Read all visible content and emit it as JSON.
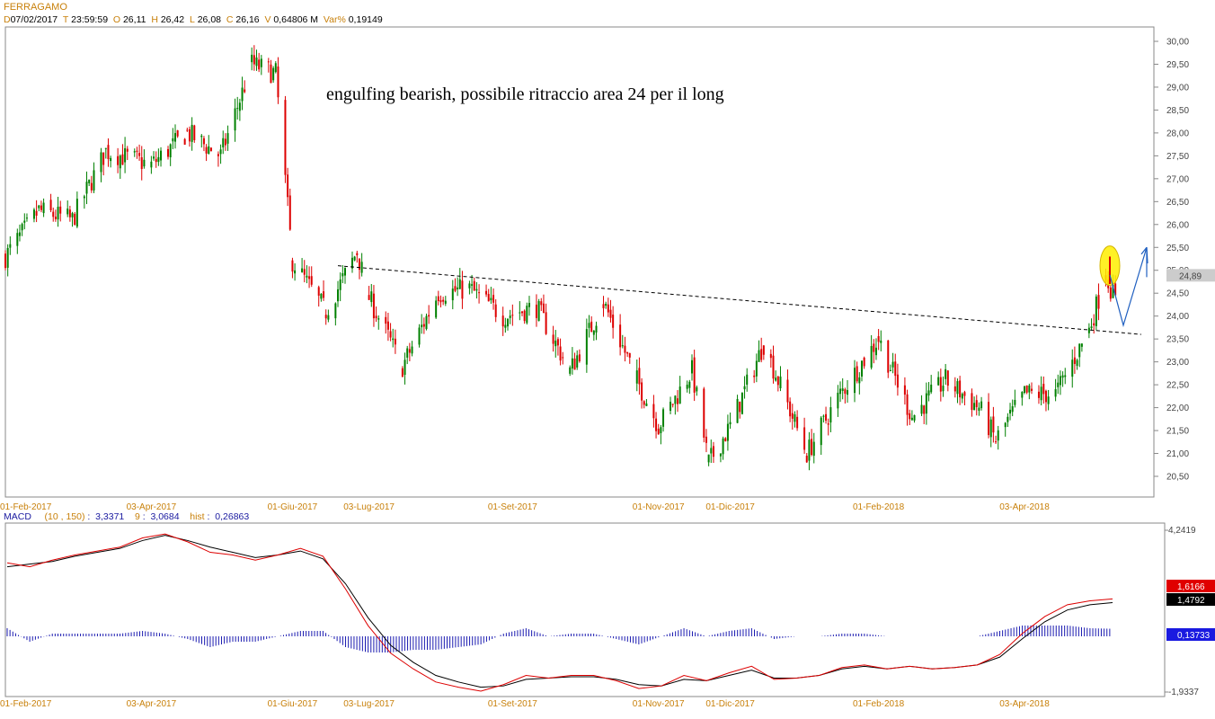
{
  "header": {
    "symbol": "FERRAGAMO",
    "date_key": "D",
    "date": "07/02/2017",
    "time_key": "T",
    "time": "23:59:59",
    "open_key": "O",
    "open": "26,11",
    "high_key": "H",
    "high": "26,42",
    "low_key": "L",
    "low": "26,08",
    "close_key": "C",
    "close": "26,16",
    "volume_key": "V",
    "volume": "0,64806 M",
    "varpct_key": "Var%",
    "varpct": "0,19149"
  },
  "macd_header": {
    "name": "MACD",
    "params": "(10 , 150)",
    "macd_value": "3,3371",
    "signal_period": "9",
    "signal_value": "3,0684",
    "hist_key": "hist",
    "hist_value": "0,26863"
  },
  "annotation": "engulfing bearish, possibile ritraccio area 24 per il long",
  "colors": {
    "up": "#008000",
    "down": "#dd0000",
    "macd": "#dd0000",
    "signal": "#000000",
    "histogram": "#1a1ab0",
    "highlight": "#ffee00",
    "arrow": "#1f5fc0"
  },
  "chart_data": [
    {
      "type": "candlestick",
      "title": "FERRAGAMO",
      "x_tick_labels": [
        "01-Feb-2017",
        "03-Apr-2017",
        "01-Giu-2017",
        "03-Lug-2017",
        "01-Set-2017",
        "01-Nov-2017",
        "01-Dic-2017",
        "01-Feb-2018",
        "03-Apr-2018"
      ],
      "y_tick_labels": [
        "30,00",
        "29,50",
        "29,00",
        "28,50",
        "28,00",
        "27,50",
        "27,00",
        "26,50",
        "26,00",
        "25,50",
        "25,00",
        "24,50",
        "24,00",
        "23,50",
        "23,00",
        "22,50",
        "22,00",
        "21,50",
        "21,00",
        "20,50"
      ],
      "ylim": [
        20.2,
        30.15
      ],
      "last_price_label": "24,89",
      "grid": false,
      "series": [
        {
          "points": [
            {
              "x": "2017-02-01",
              "close": 25.3
            },
            {
              "x": "2017-02-15",
              "close": 26.3
            },
            {
              "x": "2017-03-01",
              "close": 26.1
            },
            {
              "x": "2017-03-15",
              "close": 27.6
            },
            {
              "x": "2017-04-03",
              "close": 27.3
            },
            {
              "x": "2017-04-18",
              "close": 28.0
            },
            {
              "x": "2017-05-02",
              "close": 27.5
            },
            {
              "x": "2017-05-15",
              "close": 29.5
            },
            {
              "x": "2017-05-25",
              "close": 29.3
            },
            {
              "x": "2017-06-01",
              "close": 25.2
            },
            {
              "x": "2017-06-15",
              "close": 24.1
            },
            {
              "x": "2017-06-28",
              "close": 25.4
            },
            {
              "x": "2017-07-03",
              "close": 24.4
            },
            {
              "x": "2017-07-17",
              "close": 22.9
            },
            {
              "x": "2017-08-01",
              "close": 24.5
            },
            {
              "x": "2017-08-14",
              "close": 24.6
            },
            {
              "x": "2017-08-28",
              "close": 24.0
            },
            {
              "x": "2017-09-11",
              "close": 24.2
            },
            {
              "x": "2017-09-25",
              "close": 22.8
            },
            {
              "x": "2017-10-09",
              "close": 24.3
            },
            {
              "x": "2017-10-23",
              "close": 22.6
            },
            {
              "x": "2017-11-01",
              "close": 21.6
            },
            {
              "x": "2017-11-15",
              "close": 22.8
            },
            {
              "x": "2017-11-22",
              "close": 20.8
            },
            {
              "x": "2017-12-01",
              "close": 21.6
            },
            {
              "x": "2017-12-15",
              "close": 23.4
            },
            {
              "x": "2018-01-02",
              "close": 21.0
            },
            {
              "x": "2018-01-16",
              "close": 22.3
            },
            {
              "x": "2018-02-01",
              "close": 23.5
            },
            {
              "x": "2018-02-15",
              "close": 21.8
            },
            {
              "x": "2018-03-01",
              "close": 22.6
            },
            {
              "x": "2018-03-15",
              "close": 22.0
            },
            {
              "x": "2018-03-22",
              "close": 21.3
            },
            {
              "x": "2018-04-03",
              "close": 22.3
            },
            {
              "x": "2018-04-16",
              "close": 22.3
            },
            {
              "x": "2018-04-30",
              "close": 23.7
            },
            {
              "x": "2018-05-07",
              "close": 24.9
            },
            {
              "x": "2018-05-14",
              "close": 23.9
            },
            {
              "x": "2018-05-21",
              "close": 24.7
            },
            {
              "x": "2018-05-28",
              "close": 25.3
            },
            {
              "x": "2018-06-01",
              "close": 24.9
            }
          ]
        }
      ],
      "annotations": [
        {
          "type": "trendline",
          "style": "dashed",
          "from": {
            "x": "2017-06-20",
            "y": 25.1
          },
          "to": {
            "x": "2018-07-10",
            "y": 23.6
          }
        },
        {
          "type": "ellipse",
          "color": "yellow",
          "at": {
            "x": "2018-06-01",
            "y": 25.1
          }
        },
        {
          "type": "arrow_path",
          "points": [
            {
              "x": "2018-06-01",
              "y": 24.9
            },
            {
              "x": "2018-06-12",
              "y": 23.8
            },
            {
              "x": "2018-06-22",
              "y": 25.5
            }
          ]
        }
      ]
    },
    {
      "type": "line",
      "title": "MACD",
      "x_tick_labels": [
        "01-Feb-2017",
        "03-Apr-2017",
        "01-Giu-2017",
        "03-Lug-2017",
        "01-Set-2017",
        "01-Nov-2017",
        "01-Dic-2017",
        "01-Feb-2018",
        "03-Apr-2018"
      ],
      "y_tick_labels": [
        "4,2419",
        "-1,9337"
      ],
      "ylim": [
        -1.9337,
        4.2419
      ],
      "value_labels": [
        "1,6166",
        "1,4792",
        "0,13733"
      ],
      "series": [
        {
          "name": "MACD",
          "values": [
            3.0,
            2.85,
            3.1,
            3.3,
            3.45,
            3.6,
            3.95,
            4.1,
            3.8,
            3.4,
            3.3,
            3.1,
            3.3,
            3.55,
            3.25,
            2.0,
            0.6,
            -0.45,
            -1.05,
            -1.55,
            -1.75,
            -1.9,
            -1.65,
            -1.3,
            -1.4,
            -1.3,
            -1.3,
            -1.5,
            -1.8,
            -1.7,
            -1.3,
            -1.5,
            -1.2,
            -0.95,
            -1.45,
            -1.4,
            -1.3,
            -1.0,
            -0.9,
            -1.05,
            -0.95,
            -1.05,
            -1.0,
            -0.9,
            -0.5,
            0.3,
            0.95,
            1.4,
            1.55,
            1.62
          ]
        },
        {
          "name": "Signal",
          "values": [
            2.85,
            2.95,
            3.05,
            3.25,
            3.4,
            3.55,
            3.85,
            4.05,
            3.85,
            3.6,
            3.4,
            3.2,
            3.3,
            3.45,
            3.15,
            2.2,
            0.9,
            -0.15,
            -0.8,
            -1.3,
            -1.55,
            -1.75,
            -1.7,
            -1.45,
            -1.4,
            -1.35,
            -1.35,
            -1.45,
            -1.65,
            -1.7,
            -1.45,
            -1.5,
            -1.3,
            -1.1,
            -1.4,
            -1.4,
            -1.3,
            -1.05,
            -0.95,
            -1.05,
            -0.95,
            -1.05,
            -1.0,
            -0.9,
            -0.6,
            0.1,
            0.75,
            1.2,
            1.4,
            1.48
          ]
        },
        {
          "name": "hist",
          "values": [
            0.15,
            -0.1,
            0.05,
            0.05,
            0.05,
            0.05,
            0.1,
            0.05,
            -0.05,
            -0.2,
            -0.1,
            -0.1,
            0.0,
            0.1,
            0.1,
            -0.2,
            -0.3,
            -0.3,
            -0.25,
            -0.25,
            -0.2,
            -0.15,
            0.05,
            0.15,
            0.0,
            0.05,
            0.05,
            -0.05,
            -0.15,
            0.0,
            0.15,
            0.0,
            0.1,
            0.15,
            -0.05,
            0.0,
            0.0,
            0.05,
            0.05,
            0.0,
            0.0,
            0.0,
            0.0,
            0.0,
            0.1,
            0.2,
            0.2,
            0.2,
            0.15,
            0.14
          ]
        }
      ]
    }
  ]
}
